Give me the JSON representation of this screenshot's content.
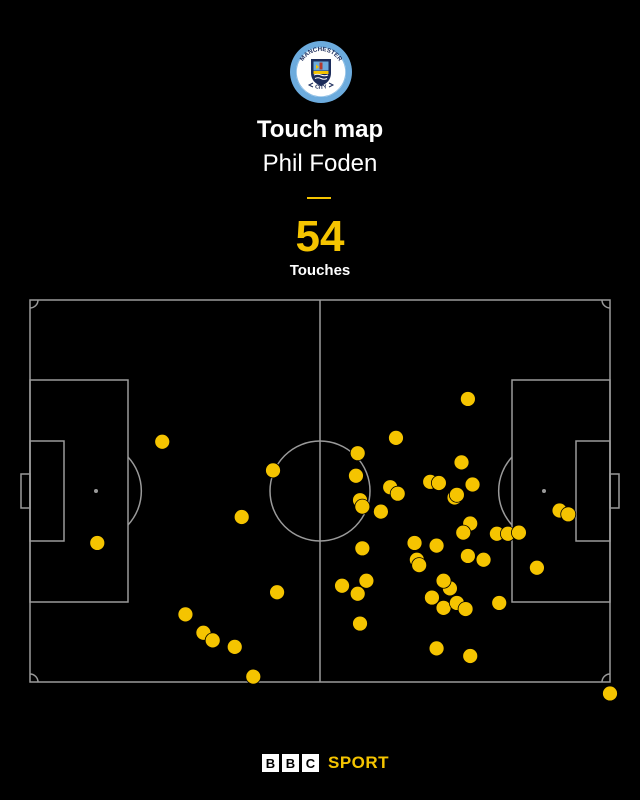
{
  "header": {
    "title": "Touch map",
    "player": "Phil Foden",
    "touch_count": "54",
    "touch_label": "Touches"
  },
  "crest": {
    "name": "manchester-city-crest",
    "text_top": "MANCHESTER",
    "text_bottom": "CITY",
    "colors": {
      "ring": "#6cabdd",
      "inner": "#ffffff",
      "shield": "#1c2c5b",
      "accent": "#f5c400"
    }
  },
  "colors": {
    "background": "#000000",
    "accent": "#f5c400",
    "lines": "#9a9a9a",
    "dot": "#f5c400"
  },
  "footer": {
    "bbc_letters": [
      "B",
      "B",
      "C"
    ],
    "sport_label": "SPORT"
  },
  "chart_data": {
    "type": "scatter",
    "title": "Touch map",
    "subtitle": "Phil Foden",
    "x_axis": "pitch length, percent (0 = left goal line, 100 = right goal line)",
    "y_axis": "pitch width, percent (0 = top touchline, 100 = bottom touchline)",
    "xlim": [
      0,
      100
    ],
    "ylim": [
      0,
      100
    ],
    "points": [
      {
        "x": 22.8,
        "y": 37.1
      },
      {
        "x": 11.6,
        "y": 63.6
      },
      {
        "x": 41.9,
        "y": 44.6
      },
      {
        "x": 36.5,
        "y": 56.8
      },
      {
        "x": 42.6,
        "y": 76.5
      },
      {
        "x": 26.8,
        "y": 82.3
      },
      {
        "x": 29.9,
        "y": 87.1
      },
      {
        "x": 31.5,
        "y": 89.1
      },
      {
        "x": 35.3,
        "y": 90.8
      },
      {
        "x": 38.5,
        "y": 98.6
      },
      {
        "x": 56.5,
        "y": 40.1
      },
      {
        "x": 56.2,
        "y": 46.0
      },
      {
        "x": 56.9,
        "y": 52.4
      },
      {
        "x": 57.3,
        "y": 54.1
      },
      {
        "x": 60.5,
        "y": 55.4
      },
      {
        "x": 62.1,
        "y": 49.0
      },
      {
        "x": 63.4,
        "y": 50.7
      },
      {
        "x": 63.1,
        "y": 36.1
      },
      {
        "x": 57.3,
        "y": 65.0
      },
      {
        "x": 58.0,
        "y": 73.5
      },
      {
        "x": 56.5,
        "y": 76.9
      },
      {
        "x": 56.9,
        "y": 84.7
      },
      {
        "x": 53.8,
        "y": 74.8
      },
      {
        "x": 75.5,
        "y": 25.9
      },
      {
        "x": 74.4,
        "y": 42.5
      },
      {
        "x": 69.0,
        "y": 47.6
      },
      {
        "x": 70.5,
        "y": 47.9
      },
      {
        "x": 73.2,
        "y": 51.7
      },
      {
        "x": 76.3,
        "y": 48.3
      },
      {
        "x": 75.9,
        "y": 58.5
      },
      {
        "x": 74.7,
        "y": 60.9
      },
      {
        "x": 70.1,
        "y": 64.3
      },
      {
        "x": 66.7,
        "y": 68.0
      },
      {
        "x": 67.1,
        "y": 69.4
      },
      {
        "x": 75.5,
        "y": 67.0
      },
      {
        "x": 78.2,
        "y": 68.0
      },
      {
        "x": 80.5,
        "y": 61.2
      },
      {
        "x": 82.4,
        "y": 61.2
      },
      {
        "x": 84.3,
        "y": 60.9
      },
      {
        "x": 72.4,
        "y": 75.5
      },
      {
        "x": 71.3,
        "y": 73.5
      },
      {
        "x": 69.3,
        "y": 77.9
      },
      {
        "x": 71.3,
        "y": 80.6
      },
      {
        "x": 73.6,
        "y": 79.3
      },
      {
        "x": 75.1,
        "y": 80.9
      },
      {
        "x": 80.9,
        "y": 79.3
      },
      {
        "x": 70.1,
        "y": 91.2
      },
      {
        "x": 75.9,
        "y": 93.2
      },
      {
        "x": 87.4,
        "y": 70.1
      },
      {
        "x": 91.3,
        "y": 55.1
      },
      {
        "x": 92.8,
        "y": 56.1
      },
      {
        "x": 100.0,
        "y": 103.0
      },
      {
        "x": 66.3,
        "y": 63.6
      },
      {
        "x": 73.6,
        "y": 51.0
      }
    ]
  }
}
